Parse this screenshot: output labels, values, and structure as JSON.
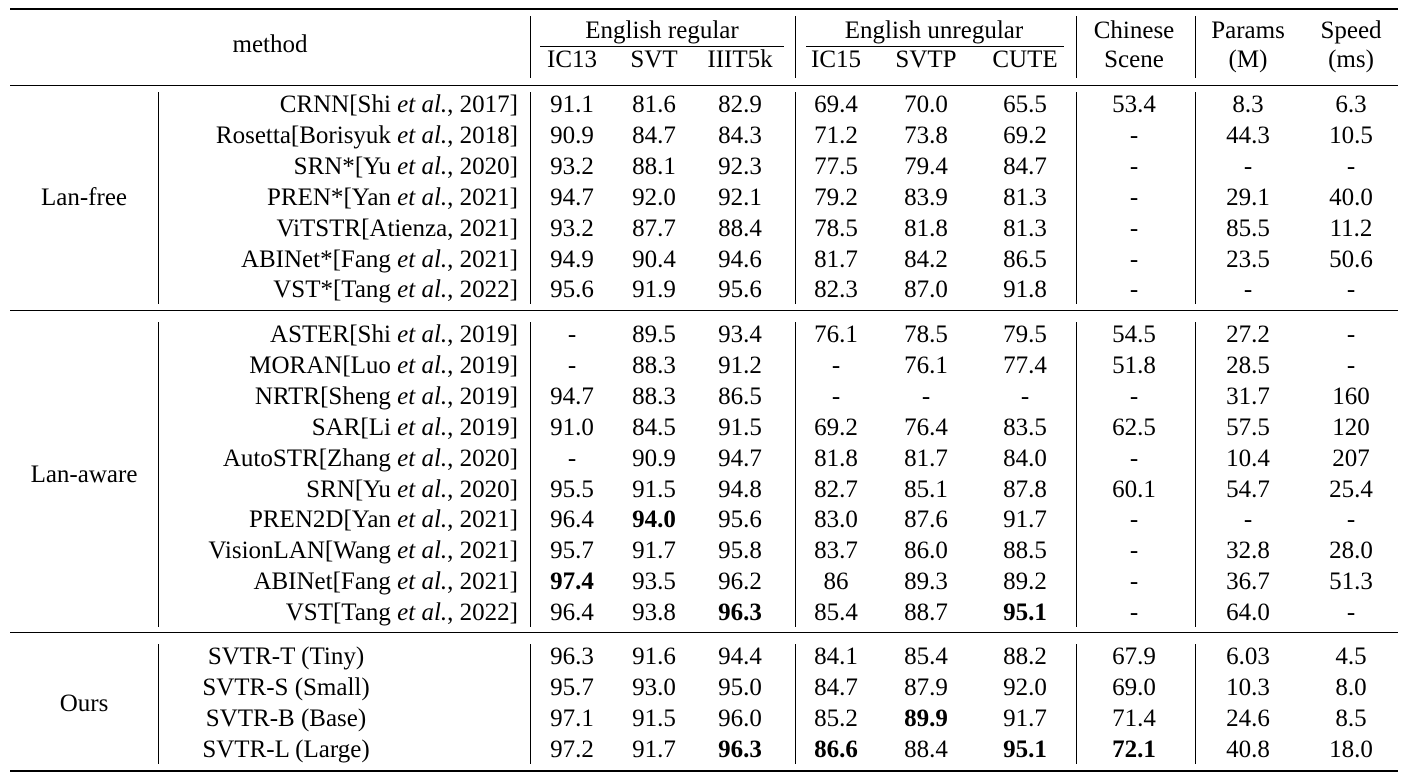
{
  "header": {
    "method": "method",
    "groups": [
      "English regular",
      "English unregular",
      "Chinese",
      "Params",
      "Speed"
    ],
    "subheaders": [
      "IC13",
      "SVT",
      "IIIT5k",
      "IC15",
      "SVTP",
      "CUTE",
      "Scene",
      "(M)",
      "(ms)"
    ]
  },
  "sections": [
    {
      "label": "Lan-free",
      "rows": [
        {
          "name": "CRNN",
          "author": "Shi",
          "year": "2017",
          "cells": [
            "91.1",
            "81.6",
            "82.9",
            "69.4",
            "70.0",
            "65.5",
            "53.4",
            "8.3",
            "6.3"
          ]
        },
        {
          "name": "Rosetta",
          "author": "Borisyuk",
          "year": "2018",
          "cells": [
            "90.9",
            "84.7",
            "84.3",
            "71.2",
            "73.8",
            "69.2",
            "-",
            "44.3",
            "10.5"
          ]
        },
        {
          "name": "SRN*",
          "author": "Yu",
          "year": "2020",
          "cells": [
            "93.2",
            "88.1",
            "92.3",
            "77.5",
            "79.4",
            "84.7",
            "-",
            "-",
            "-"
          ]
        },
        {
          "name": "PREN*",
          "author": "Yan",
          "year": "2021",
          "cells": [
            "94.7",
            "92.0",
            "92.1",
            "79.2",
            "83.9",
            "81.3",
            "-",
            "29.1",
            "40.0"
          ]
        },
        {
          "name": "ViTSTR",
          "author": "Atienza",
          "year": "2021",
          "plain": true,
          "cells": [
            "93.2",
            "87.7",
            "88.4",
            "78.5",
            "81.8",
            "81.3",
            "-",
            "85.5",
            "11.2"
          ]
        },
        {
          "name": "ABINet*",
          "author": "Fang",
          "year": "2021",
          "cells": [
            "94.9",
            "90.4",
            "94.6",
            "81.7",
            "84.2",
            "86.5",
            "-",
            "23.5",
            "50.6"
          ]
        },
        {
          "name": "VST*",
          "author": "Tang",
          "year": "2022",
          "cells": [
            "95.6",
            "91.9",
            "95.6",
            "82.3",
            "87.0",
            "91.8",
            "-",
            "-",
            "-"
          ]
        }
      ]
    },
    {
      "label": "Lan-aware",
      "rows": [
        {
          "name": "ASTER",
          "author": "Shi",
          "year": "2019",
          "cells": [
            "-",
            "89.5",
            "93.4",
            "76.1",
            "78.5",
            "79.5",
            "54.5",
            "27.2",
            "-"
          ]
        },
        {
          "name": "MORAN",
          "author": "Luo",
          "year": "2019",
          "cells": [
            "-",
            "88.3",
            "91.2",
            "-",
            "76.1",
            "77.4",
            "51.8",
            "28.5",
            "-"
          ]
        },
        {
          "name": "NRTR",
          "author": "Sheng",
          "year": "2019",
          "cells": [
            "94.7",
            "88.3",
            "86.5",
            "-",
            "-",
            "-",
            "-",
            "31.7",
            "160"
          ]
        },
        {
          "name": "SAR",
          "author": "Li",
          "year": "2019",
          "cells": [
            "91.0",
            "84.5",
            "91.5",
            "69.2",
            "76.4",
            "83.5",
            "62.5",
            "57.5",
            "120"
          ]
        },
        {
          "name": "AutoSTR",
          "author": "Zhang",
          "year": "2020",
          "cells": [
            "-",
            "90.9",
            "94.7",
            "81.8",
            "81.7",
            "84.0",
            "-",
            "10.4",
            "207"
          ]
        },
        {
          "name": "SRN",
          "author": "Yu",
          "year": "2020",
          "cells": [
            "95.5",
            "91.5",
            "94.8",
            "82.7",
            "85.1",
            "87.8",
            "60.1",
            "54.7",
            "25.4"
          ]
        },
        {
          "name": "PREN2D",
          "author": "Yan",
          "year": "2021",
          "bold": [
            1
          ],
          "cells": [
            "96.4",
            "94.0",
            "95.6",
            "83.0",
            "87.6",
            "91.7",
            "-",
            "-",
            "-"
          ]
        },
        {
          "name": "VisionLAN",
          "author": "Wang",
          "year": "2021",
          "cells": [
            "95.7",
            "91.7",
            "95.8",
            "83.7",
            "86.0",
            "88.5",
            "-",
            "32.8",
            "28.0"
          ]
        },
        {
          "name": "ABINet",
          "author": "Fang",
          "year": "2021",
          "bold": [
            0
          ],
          "cells": [
            "97.4",
            "93.5",
            "96.2",
            "86",
            "89.3",
            "89.2",
            "-",
            "36.7",
            "51.3"
          ]
        },
        {
          "name": "VST",
          "author": "Tang",
          "year": "2022",
          "bold": [
            2,
            5
          ],
          "cells": [
            "96.4",
            "93.8",
            "96.3",
            "85.4",
            "88.7",
            "95.1",
            "-",
            "64.0",
            "-"
          ]
        }
      ]
    },
    {
      "label": "Ours",
      "rows": [
        {
          "name": "SVTR-T (Tiny)",
          "simple": true,
          "cells": [
            "96.3",
            "91.6",
            "94.4",
            "84.1",
            "85.4",
            "88.2",
            "67.9",
            "6.03",
            "4.5"
          ]
        },
        {
          "name": "SVTR-S (Small)",
          "simple": true,
          "cells": [
            "95.7",
            "93.0",
            "95.0",
            "84.7",
            "87.9",
            "92.0",
            "69.0",
            "10.3",
            "8.0"
          ]
        },
        {
          "name": "SVTR-B (Base)",
          "simple": true,
          "bold": [
            4
          ],
          "cells": [
            "97.1",
            "91.5",
            "96.0",
            "85.2",
            "89.9",
            "91.7",
            "71.4",
            "24.6",
            "8.5"
          ]
        },
        {
          "name": "SVTR-L (Large)",
          "simple": true,
          "bold": [
            2,
            3,
            5,
            6
          ],
          "cells": [
            "97.2",
            "91.7",
            "96.3",
            "86.6",
            "88.4",
            "95.1",
            "72.1",
            "40.8",
            "18.0"
          ]
        }
      ]
    }
  ],
  "citation": {
    "etal": "et al.",
    "sep": ", "
  }
}
